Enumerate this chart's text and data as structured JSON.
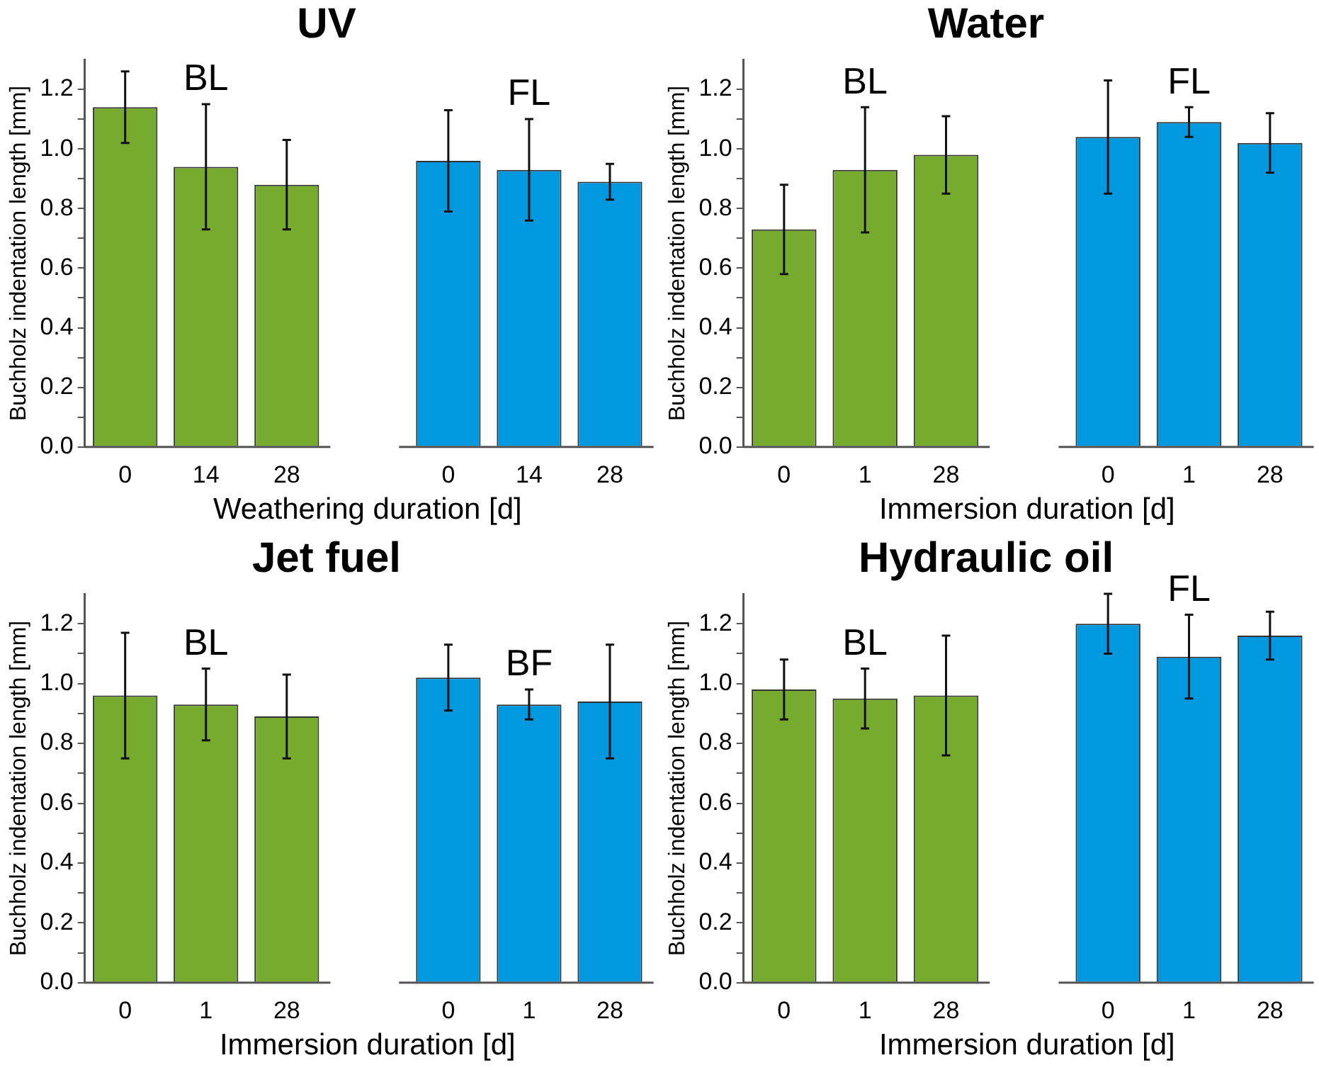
{
  "chart_data": [
    {
      "type": "bar",
      "title": "UV",
      "xlabel": "Weathering duration [d]",
      "ylabel": "Buchholz indentation length [mm]",
      "categories": [
        "0",
        "14",
        "28",
        null,
        "0",
        "14",
        "28"
      ],
      "series": [
        {
          "name": "BL",
          "color": "#76ab2f",
          "values": [
            1.14,
            0.94,
            0.88,
            null,
            null,
            null,
            null
          ],
          "errors": [
            0.12,
            0.21,
            0.15,
            null,
            null,
            null,
            null
          ]
        },
        {
          "name": "FL",
          "color": "#0099e0",
          "values": [
            null,
            null,
            null,
            null,
            0.96,
            0.93,
            0.89
          ],
          "errors": [
            null,
            null,
            null,
            null,
            0.17,
            0.17,
            0.06
          ]
        }
      ],
      "ylim": [
        0,
        1.3
      ],
      "yticks": [
        {
          "value": 0,
          "label": "0.0"
        },
        {
          "value": 0.1,
          "label": null
        },
        0.2,
        {
          "value": 0.3,
          "label": null
        },
        0.4,
        {
          "value": 0.5,
          "label": null
        },
        0.6,
        {
          "value": 0.7,
          "label": null
        },
        0.8,
        {
          "value": 0.9,
          "label": null
        },
        {
          "value": 1,
          "label": "1.0"
        },
        {
          "value": 1.1,
          "label": null
        },
        1.2
      ]
    },
    {
      "type": "bar",
      "title": "Water",
      "xlabel": "Immersion duration [d]",
      "ylabel": "Buchholz indentation length [mm]",
      "categories": [
        "0",
        "1",
        "28",
        null,
        "0",
        "1",
        "28"
      ],
      "series": [
        {
          "name": "BL",
          "color": "#76ab2f",
          "values": [
            0.73,
            0.93,
            0.98,
            null,
            null,
            null,
            null
          ],
          "errors": [
            0.15,
            0.21,
            0.13,
            null,
            null,
            null,
            null
          ]
        },
        {
          "name": "FL",
          "color": "#0099e0",
          "values": [
            null,
            null,
            null,
            null,
            1.04,
            1.09,
            1.02
          ],
          "errors": [
            null,
            null,
            null,
            null,
            0.19,
            0.05,
            0.1
          ]
        }
      ],
      "ylim": [
        0,
        1.3
      ],
      "yticks": [
        {
          "value": 0,
          "label": "0.0"
        },
        {
          "value": 0.1,
          "label": null
        },
        0.2,
        {
          "value": 0.3,
          "label": null
        },
        0.4,
        {
          "value": 0.5,
          "label": null
        },
        0.6,
        {
          "value": 0.7,
          "label": null
        },
        0.8,
        {
          "value": 0.9,
          "label": null
        },
        {
          "value": 1,
          "label": "1.0"
        },
        {
          "value": 1.1,
          "label": null
        },
        1.2
      ]
    },
    {
      "type": "bar",
      "title": "Jet fuel",
      "xlabel": "Immersion duration [d]",
      "ylabel": "Buchholz indentation length [mm]",
      "categories": [
        "0",
        "1",
        "28",
        null,
        "0",
        "1",
        "28"
      ],
      "series": [
        {
          "name": "BL",
          "color": "#76ab2f",
          "values": [
            0.96,
            0.93,
            0.89,
            null,
            null,
            null,
            null
          ],
          "errors": [
            0.21,
            0.12,
            0.14,
            null,
            null,
            null,
            null
          ]
        },
        {
          "name": "BF",
          "color": "#0099e0",
          "values": [
            null,
            null,
            null,
            null,
            1.02,
            0.93,
            0.94
          ],
          "errors": [
            null,
            null,
            null,
            null,
            0.11,
            0.05,
            0.19
          ]
        }
      ],
      "ylim": [
        0,
        1.3
      ],
      "yticks": [
        {
          "value": 0,
          "label": "0.0"
        },
        {
          "value": 0.1,
          "label": null
        },
        0.2,
        {
          "value": 0.3,
          "label": null
        },
        0.4,
        {
          "value": 0.5,
          "label": null
        },
        0.6,
        {
          "value": 0.7,
          "label": null
        },
        0.8,
        {
          "value": 0.9,
          "label": null
        },
        {
          "value": 1,
          "label": "1.0"
        },
        {
          "value": 1.1,
          "label": null
        },
        1.2
      ]
    },
    {
      "type": "bar",
      "title": "Hydraulic oil",
      "xlabel": "Immersion duration [d]",
      "ylabel": "Buchholz indentation length [mm]",
      "categories": [
        "0",
        "1",
        "28",
        null,
        "0",
        "1",
        "28"
      ],
      "series": [
        {
          "name": "BL",
          "color": "#76ab2f",
          "values": [
            0.98,
            0.95,
            0.96,
            null,
            null,
            null,
            null
          ],
          "errors": [
            0.1,
            0.1,
            0.2,
            null,
            null,
            null,
            null
          ]
        },
        {
          "name": "FL",
          "color": "#0099e0",
          "values": [
            null,
            null,
            null,
            null,
            1.2,
            1.09,
            1.16
          ],
          "errors": [
            null,
            null,
            null,
            null,
            0.1,
            0.14,
            0.08
          ]
        }
      ],
      "ylim": [
        0,
        1.3
      ],
      "yticks": [
        {
          "value": 0,
          "label": "0.0"
        },
        {
          "value": 0.1,
          "label": null
        },
        0.2,
        {
          "value": 0.3,
          "label": null
        },
        0.4,
        {
          "value": 0.5,
          "label": null
        },
        0.6,
        {
          "value": 0.7,
          "label": null
        },
        0.8,
        {
          "value": 0.9,
          "label": null
        },
        {
          "value": 1,
          "label": "1.0"
        },
        {
          "value": 1.1,
          "label": null
        },
        1.2
      ]
    }
  ]
}
